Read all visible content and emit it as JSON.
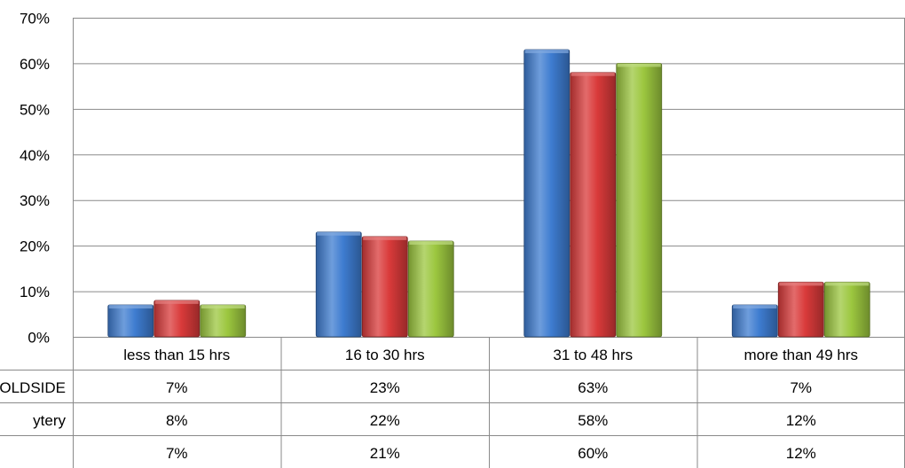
{
  "chart_data": {
    "type": "bar",
    "categories": [
      "less than 15 hrs",
      "16 to 30 hrs",
      "31 to 48 hrs",
      "more than 49 hrs"
    ],
    "series": [
      {
        "name": "OLDSIDE",
        "values": [
          7,
          23,
          63,
          7
        ],
        "color": "#3E7CD0"
      },
      {
        "name": "ytery",
        "values": [
          8,
          22,
          58,
          12
        ],
        "color": "#D93A3A"
      },
      {
        "name": "",
        "values": [
          7,
          21,
          60,
          12
        ],
        "color": "#9CC73F"
      }
    ],
    "table_rows": [
      {
        "label": "OLDSIDE",
        "cells": [
          "7%",
          "23%",
          "63%",
          "7%"
        ]
      },
      {
        "label": "ytery",
        "cells": [
          "8%",
          "22%",
          "58%",
          "12%"
        ]
      },
      {
        "label": "",
        "cells": [
          "7%",
          "21%",
          "60%",
          "12%"
        ]
      }
    ],
    "y_ticks": [
      "0%",
      "10%",
      "20%",
      "30%",
      "40%",
      "50%",
      "60%",
      "70%"
    ],
    "ylim": [
      0,
      70
    ],
    "grid": true,
    "legend": "data table"
  }
}
